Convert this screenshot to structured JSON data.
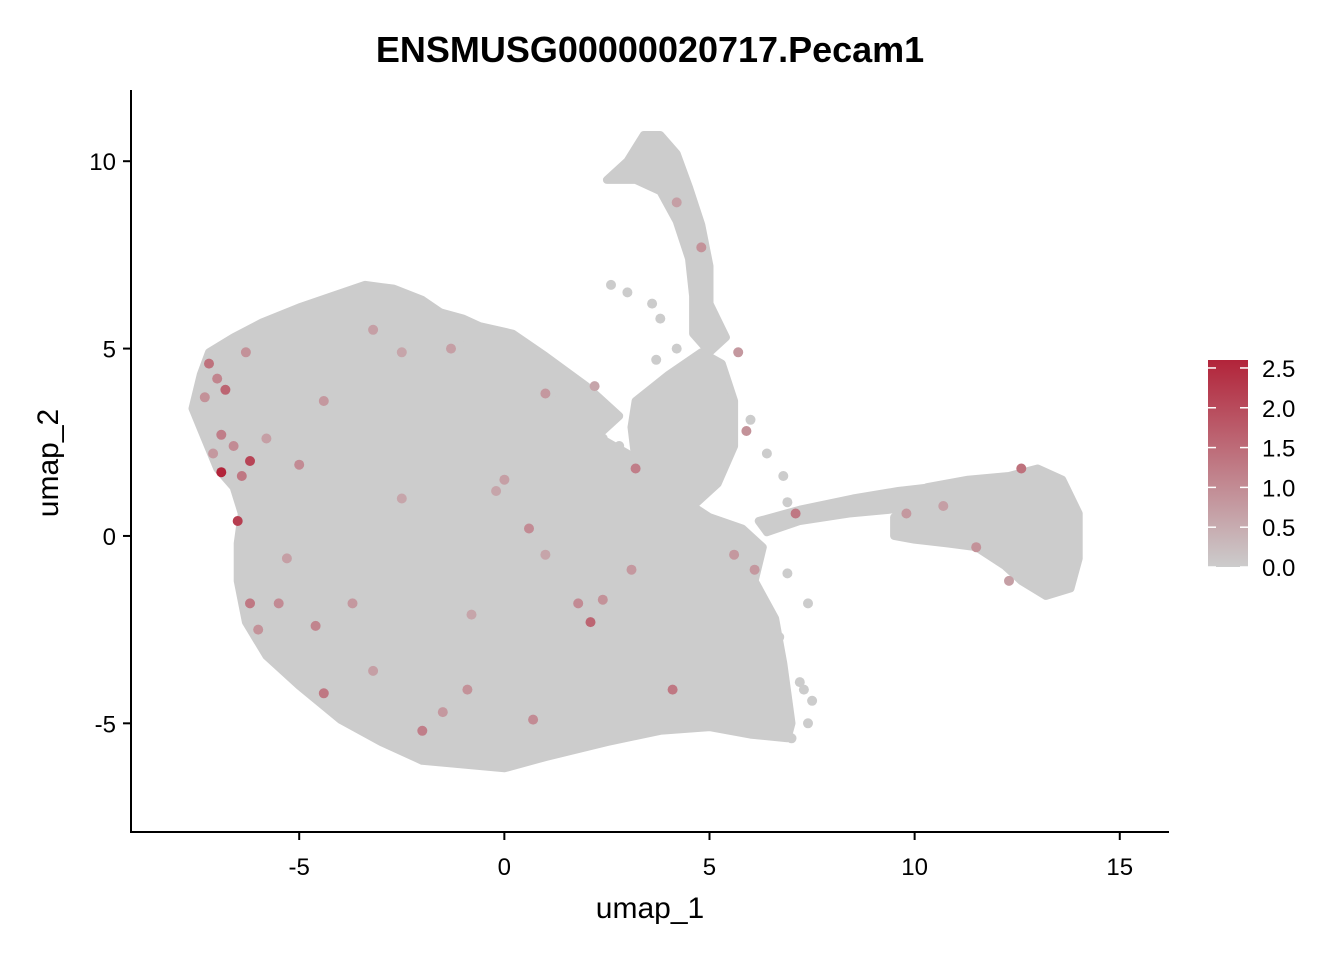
{
  "chart_data": {
    "type": "scatter",
    "title": "ENSMUSG00000020717.Pecam1",
    "xlabel": "umap_1",
    "ylabel": "umap_2",
    "xlim": [
      -9.1,
      16.2
    ],
    "ylim": [
      -7.9,
      11.9
    ],
    "x_ticks": [
      -5,
      0,
      5,
      10,
      15
    ],
    "y_ticks": [
      -5,
      0,
      5,
      10
    ],
    "x_tick_labels": [
      "-5",
      "0",
      "5",
      "10",
      "15"
    ],
    "y_tick_labels": [
      "-5",
      "0",
      "5",
      "10"
    ],
    "color_scale": {
      "low": "#cccccc",
      "high": "#b2243a",
      "min": 0.0,
      "max": 2.6,
      "breaks": [
        0.0,
        0.5,
        1.0,
        1.5,
        2.0,
        2.5
      ],
      "break_labels": [
        "0.0",
        "0.5",
        "1.0",
        "1.5",
        "2.0",
        "2.5"
      ]
    },
    "legend_position": "right",
    "expressed_points": [
      {
        "x": -7.2,
        "y": 4.6,
        "v": 1.4
      },
      {
        "x": -7.0,
        "y": 4.2,
        "v": 1.1
      },
      {
        "x": -6.8,
        "y": 3.9,
        "v": 1.6
      },
      {
        "x": -7.3,
        "y": 3.7,
        "v": 0.9
      },
      {
        "x": -6.9,
        "y": 2.7,
        "v": 1.2
      },
      {
        "x": -6.6,
        "y": 2.4,
        "v": 1.0
      },
      {
        "x": -7.1,
        "y": 2.2,
        "v": 0.8
      },
      {
        "x": -6.9,
        "y": 1.7,
        "v": 2.6
      },
      {
        "x": -6.2,
        "y": 2.0,
        "v": 2.1
      },
      {
        "x": -6.4,
        "y": 1.6,
        "v": 1.3
      },
      {
        "x": -6.5,
        "y": 0.4,
        "v": 2.2
      },
      {
        "x": -6.3,
        "y": 4.9,
        "v": 0.9
      },
      {
        "x": -5.8,
        "y": 2.6,
        "v": 0.7
      },
      {
        "x": -5.0,
        "y": 1.9,
        "v": 1.0
      },
      {
        "x": -4.4,
        "y": 3.6,
        "v": 0.8
      },
      {
        "x": -3.2,
        "y": 5.5,
        "v": 0.7
      },
      {
        "x": -2.5,
        "y": 4.9,
        "v": 0.6
      },
      {
        "x": -2.5,
        "y": 1.0,
        "v": 0.6
      },
      {
        "x": -5.3,
        "y": -0.6,
        "v": 0.7
      },
      {
        "x": -5.5,
        "y": -1.8,
        "v": 1.0
      },
      {
        "x": -6.2,
        "y": -1.8,
        "v": 1.3
      },
      {
        "x": -6.0,
        "y": -2.5,
        "v": 0.9
      },
      {
        "x": -4.6,
        "y": -2.4,
        "v": 1.1
      },
      {
        "x": -4.4,
        "y": -4.2,
        "v": 1.3
      },
      {
        "x": -3.7,
        "y": -1.8,
        "v": 0.8
      },
      {
        "x": -3.2,
        "y": -3.6,
        "v": 0.7
      },
      {
        "x": -2.0,
        "y": -5.2,
        "v": 1.2
      },
      {
        "x": -1.5,
        "y": -4.7,
        "v": 0.8
      },
      {
        "x": -0.9,
        "y": -4.1,
        "v": 0.9
      },
      {
        "x": -0.8,
        "y": -2.1,
        "v": 0.6
      },
      {
        "x": 0.6,
        "y": 0.2,
        "v": 1.0
      },
      {
        "x": 0.7,
        "y": -4.9,
        "v": 1.0
      },
      {
        "x": 1.0,
        "y": -0.5,
        "v": 0.6
      },
      {
        "x": 1.8,
        "y": -1.8,
        "v": 1.0
      },
      {
        "x": 2.1,
        "y": -2.3,
        "v": 1.6
      },
      {
        "x": 2.4,
        "y": -1.7,
        "v": 0.9
      },
      {
        "x": 3.1,
        "y": -0.9,
        "v": 0.8
      },
      {
        "x": 4.1,
        "y": -4.1,
        "v": 1.3
      },
      {
        "x": 0.0,
        "y": 1.5,
        "v": 0.7
      },
      {
        "x": 3.2,
        "y": 1.8,
        "v": 1.2
      },
      {
        "x": 4.8,
        "y": 7.7,
        "v": 0.9
      },
      {
        "x": 4.2,
        "y": 8.9,
        "v": 0.7
      },
      {
        "x": 5.7,
        "y": 4.9,
        "v": 0.8
      },
      {
        "x": 5.9,
        "y": 2.8,
        "v": 0.9
      },
      {
        "x": 5.6,
        "y": -0.5,
        "v": 0.8
      },
      {
        "x": 6.1,
        "y": -0.9,
        "v": 0.8
      },
      {
        "x": 7.1,
        "y": 0.6,
        "v": 1.3
      },
      {
        "x": 1.0,
        "y": 3.8,
        "v": 0.8
      },
      {
        "x": 9.8,
        "y": 0.6,
        "v": 0.8
      },
      {
        "x": 10.7,
        "y": 0.8,
        "v": 0.7
      },
      {
        "x": 11.5,
        "y": -0.3,
        "v": 0.9
      },
      {
        "x": 12.6,
        "y": 1.8,
        "v": 1.4
      },
      {
        "x": 12.3,
        "y": -1.2,
        "v": 0.7
      },
      {
        "x": -1.3,
        "y": 5.0,
        "v": 0.7
      },
      {
        "x": 2.2,
        "y": 4.0,
        "v": 0.6
      },
      {
        "x": -0.2,
        "y": 1.2,
        "v": 0.6
      }
    ]
  }
}
